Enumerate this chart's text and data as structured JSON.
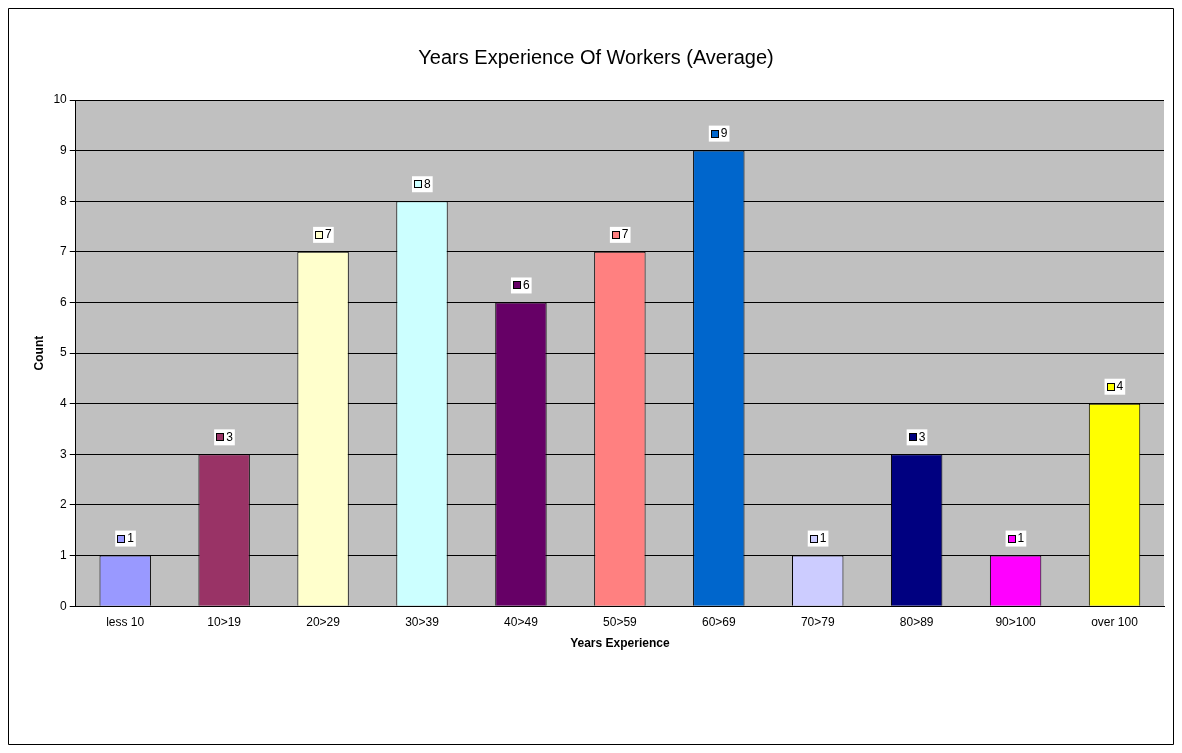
{
  "chart_data": {
    "type": "bar",
    "title": "Years Experience Of Workers (Average)",
    "xlabel": "Years Experience",
    "ylabel": "Count",
    "categories": [
      "less 10",
      "10>19",
      "20>29",
      "30>39",
      "40>49",
      "50>59",
      "60>69",
      "70>79",
      "80>89",
      "90>100",
      "over 100"
    ],
    "values": [
      1,
      3,
      7,
      8,
      6,
      7,
      9,
      1,
      3,
      1,
      4
    ],
    "colors": [
      "#9999ff",
      "#993366",
      "#ffffcc",
      "#ccffff",
      "#660066",
      "#ff8080",
      "#0066cc",
      "#ccccff",
      "#000080",
      "#ff00ff",
      "#ffff00"
    ],
    "ylim": [
      0,
      10
    ],
    "yticks": [
      0,
      1,
      2,
      3,
      4,
      5,
      6,
      7,
      8,
      9,
      10
    ],
    "grid": "y",
    "data_labels": true,
    "legend": false
  }
}
